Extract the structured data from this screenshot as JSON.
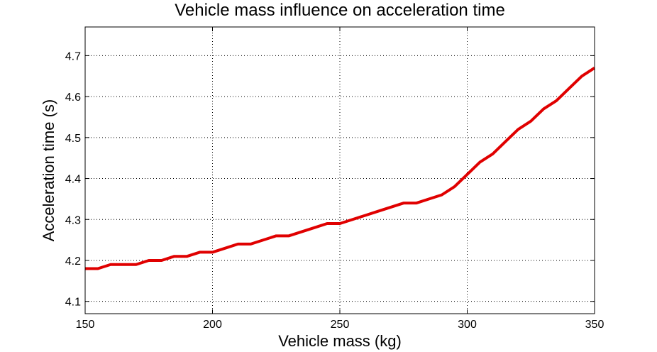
{
  "chart_data": {
    "type": "line",
    "title": "Vehicle mass influence on acceleration time",
    "xlabel": "Vehicle mass (kg)",
    "ylabel": "Acceleration time (s)",
    "xlim": [
      150,
      350
    ],
    "ylim": [
      4.07,
      4.77
    ],
    "xticks": [
      150,
      200,
      250,
      300,
      350
    ],
    "yticks": [
      4.1,
      4.2,
      4.3,
      4.4,
      4.5,
      4.6,
      4.7
    ],
    "xtick_labels": [
      "150",
      "200",
      "250",
      "300",
      "350"
    ],
    "ytick_labels": [
      "4.1",
      "4.2",
      "4.3",
      "4.4",
      "4.5",
      "4.6",
      "4.7"
    ],
    "grid": true,
    "series": [
      {
        "color": "#e00000",
        "x": [
          150,
          155,
          160,
          165,
          170,
          175,
          180,
          185,
          190,
          195,
          200,
          205,
          210,
          215,
          220,
          225,
          230,
          235,
          240,
          245,
          250,
          255,
          260,
          265,
          270,
          275,
          280,
          285,
          290,
          295,
          300,
          305,
          310,
          315,
          320,
          325,
          330,
          335,
          340,
          345,
          350
        ],
        "y": [
          4.18,
          4.18,
          4.19,
          4.19,
          4.19,
          4.2,
          4.2,
          4.21,
          4.21,
          4.22,
          4.22,
          4.23,
          4.24,
          4.24,
          4.25,
          4.26,
          4.26,
          4.27,
          4.28,
          4.29,
          4.29,
          4.3,
          4.31,
          4.32,
          4.33,
          4.34,
          4.34,
          4.35,
          4.36,
          4.38,
          4.41,
          4.44,
          4.46,
          4.49,
          4.52,
          4.54,
          4.57,
          4.59,
          4.62,
          4.65,
          4.67
        ]
      }
    ]
  }
}
